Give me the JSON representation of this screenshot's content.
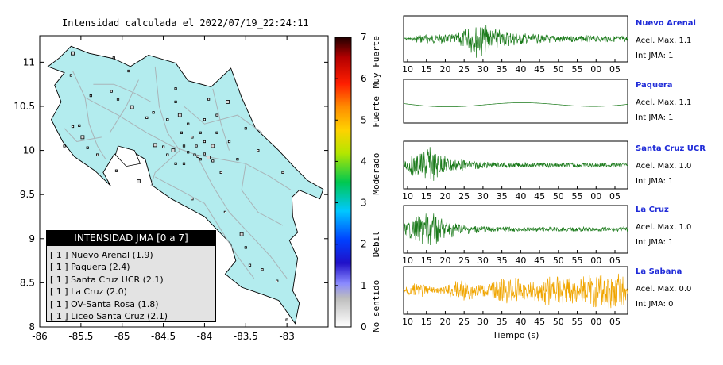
{
  "title": "Intensidad calculada el 2022/07/19_22:24:11",
  "map": {
    "x_ticks": [
      "-86",
      "-85.5",
      "-85",
      "-84.5",
      "-84",
      "-83.5",
      "-83"
    ],
    "y_ticks": [
      "11",
      "10.5",
      "10",
      "9.5",
      "9",
      "8.5",
      "8"
    ],
    "xlim": [
      -86,
      -82.5
    ],
    "ylim": [
      8,
      11.3
    ],
    "land_color": "#b3ecee",
    "road_color": "#a9b4b8"
  },
  "colorbar": {
    "ticks": [
      "0",
      "1",
      "2",
      "3",
      "4",
      "5",
      "6",
      "7"
    ],
    "labels": [
      "No sentido",
      "Debil",
      "Moderado",
      "Fuerte",
      "Muy Fuerte"
    ],
    "range": [
      0,
      7
    ]
  },
  "legend": {
    "title": "INTENSIDAD JMA [0 a 7]",
    "items": [
      "[ 1 ]  Nuevo Arenal (1.9)",
      "[ 1 ]  Paquera (2.4)",
      "[ 1 ]  Santa Cruz UCR (2.1)",
      "[ 1 ]  La Cruz (2.0)",
      "[ 1 ]  OV-Santa Rosa (1.8)",
      "[ 1 ]  Liceo Santa Cruz (2.1)"
    ]
  },
  "stations": [
    {
      "name": "Nuevo Arenal",
      "accel": "Acel. Max. 1.1",
      "jma": "Int JMA: 1",
      "color": "#1a7a1a",
      "style": "burst-late"
    },
    {
      "name": "Paquera",
      "accel": "Acel. Max. 1.1",
      "jma": "Int JMA: 1",
      "color": "#1a7a1a",
      "style": "flat"
    },
    {
      "name": "Santa Cruz UCR",
      "accel": "Acel. Max. 1.0",
      "jma": "Int JMA: 1",
      "color": "#1a7a1a",
      "style": "burst-early"
    },
    {
      "name": "La Cruz",
      "accel": "Acel. Max. 1.0",
      "jma": "Int JMA: 1",
      "color": "#1a7a1a",
      "style": "burst-early"
    },
    {
      "name": "La Sabana",
      "accel": "Acel. Max. 0.0",
      "jma": "Int JMA: 0",
      "color": "#f0a500",
      "style": "noise"
    }
  ],
  "time_ticks": [
    "10",
    "15",
    "20",
    "25",
    "30",
    "35",
    "40",
    "45",
    "50",
    "55",
    "00",
    "05"
  ],
  "time_axis_label": "Tiempo (s)",
  "chart_data": [
    {
      "type": "scatter",
      "title": "Intensidad calculada el 2022/07/19_22:24:11",
      "xlim": [
        -86,
        -82.5
      ],
      "ylim": [
        8,
        11.3
      ],
      "note_stations": [
        "Nuevo Arenal",
        "Paquera",
        "Santa Cruz UCR",
        "La Cruz",
        "OV-Santa Rosa",
        "Liceo Santa Cruz"
      ],
      "station_intensity": [
        1.9,
        2.4,
        2.1,
        2.0,
        1.8,
        2.1
      ],
      "station_jma": [
        1,
        1,
        1,
        1,
        1,
        1
      ]
    },
    {
      "type": "line",
      "series_names": [
        "Nuevo Arenal",
        "Paquera",
        "Santa Cruz UCR",
        "La Cruz",
        "La Sabana"
      ],
      "acel_max": [
        1.1,
        1.1,
        1.0,
        1.0,
        0.0
      ],
      "int_jma": [
        1,
        1,
        1,
        1,
        0
      ],
      "xlabel": "Tiempo (s)",
      "x_tick_labels": [
        "10",
        "15",
        "20",
        "25",
        "30",
        "35",
        "40",
        "45",
        "50",
        "55",
        "00",
        "05"
      ]
    }
  ]
}
